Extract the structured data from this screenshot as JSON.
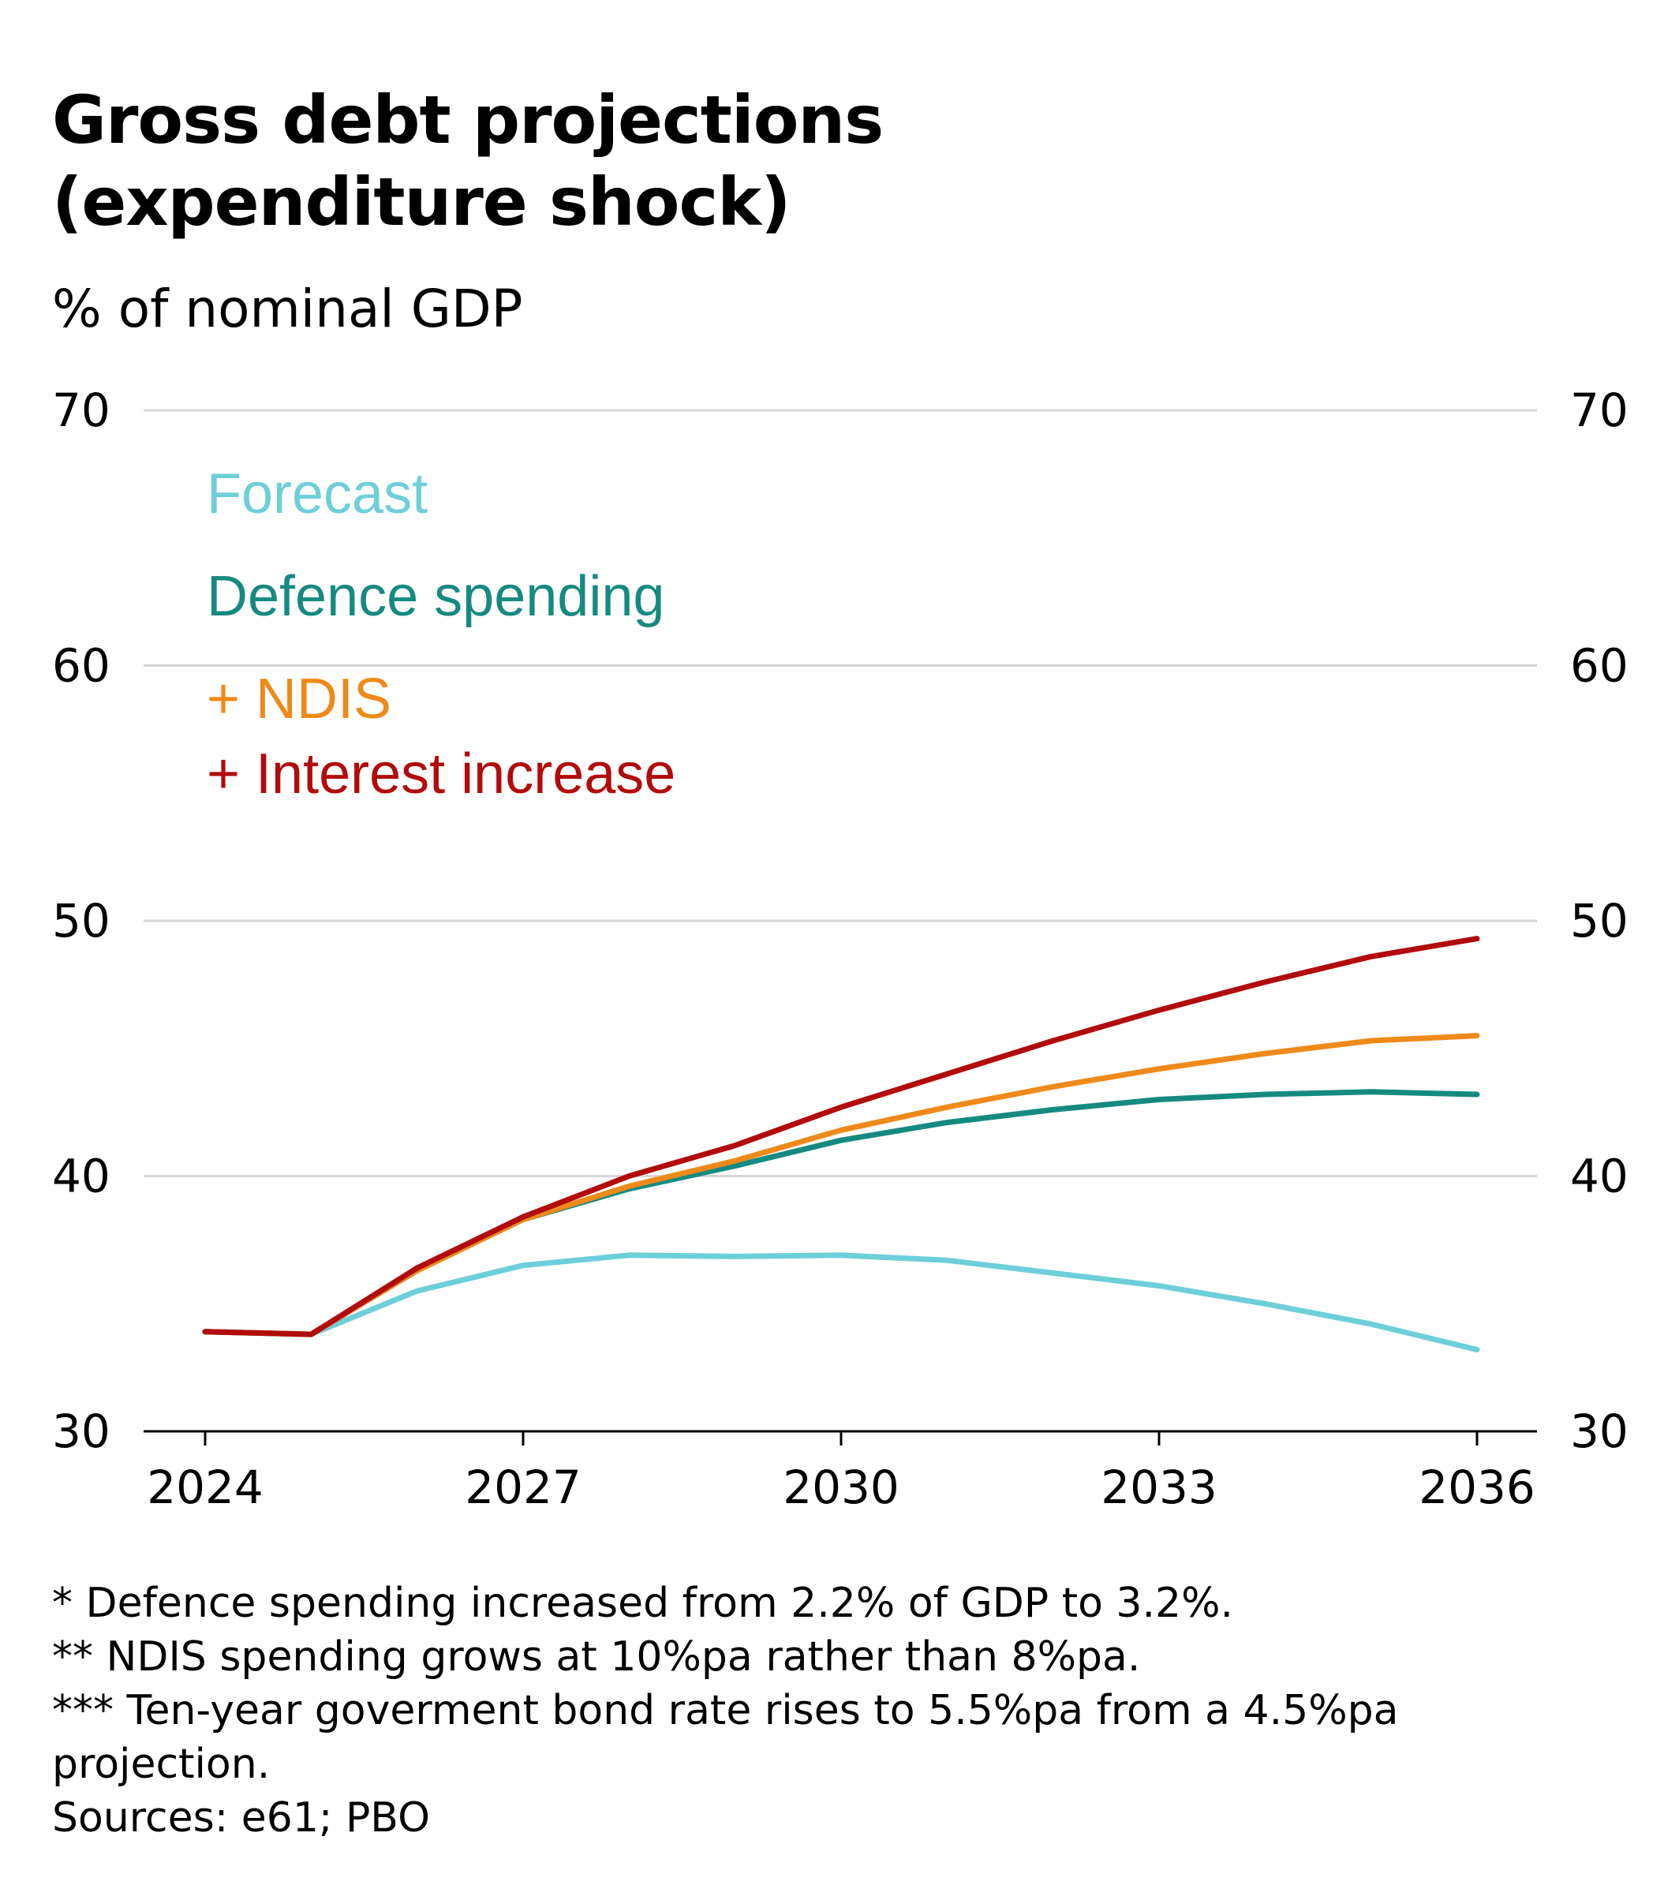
{
  "chart_data": {
    "type": "line",
    "title_lines": [
      "Gross debt projections",
      "(expenditure shock)"
    ],
    "subtitle": "% of nominal GDP",
    "x": [
      2024,
      2025,
      2026,
      2027,
      2028,
      2029,
      2030,
      2031,
      2032,
      2033,
      2034,
      2035,
      2036
    ],
    "x_ticks": [
      2024,
      2027,
      2030,
      2033,
      2036
    ],
    "y_ticks": [
      30,
      40,
      50,
      60,
      70
    ],
    "ylim": [
      30,
      70
    ],
    "xlim": [
      2024,
      2036
    ],
    "grid": true,
    "legend_position": "top-left",
    "series": [
      {
        "name": "Forecast",
        "color": "#6dcfd9",
        "values": [
          33.9,
          33.8,
          35.5,
          36.5,
          36.9,
          36.85,
          36.9,
          36.7,
          36.2,
          35.7,
          35.0,
          34.2,
          33.2
        ]
      },
      {
        "name": "Defence spending",
        "color": "#158a80",
        "values": [
          33.9,
          33.8,
          36.3,
          38.3,
          39.5,
          40.4,
          41.4,
          42.1,
          42.6,
          43.0,
          43.2,
          43.3,
          43.2
        ]
      },
      {
        "name": "+ NDIS",
        "color": "#ee8a1a",
        "values": [
          33.9,
          33.8,
          36.3,
          38.3,
          39.6,
          40.6,
          41.8,
          42.7,
          43.5,
          44.2,
          44.8,
          45.3,
          45.5
        ]
      },
      {
        "name": "+ Interest increase",
        "color": "#b20b0b",
        "values": [
          33.9,
          33.8,
          36.4,
          38.4,
          40.0,
          41.2,
          42.7,
          44.0,
          45.3,
          46.5,
          47.6,
          48.6,
          49.3
        ]
      }
    ]
  },
  "footnotes": [
    "* Defence spending increased from 2.2% of GDP to 3.2%.",
    "** NDIS spending grows at 10%pa rather than 8%pa.",
    "*** Ten-year goverment bond rate rises to 5.5%pa from a 4.5%pa\nprojection.",
    "Sources: e61; PBO"
  ]
}
